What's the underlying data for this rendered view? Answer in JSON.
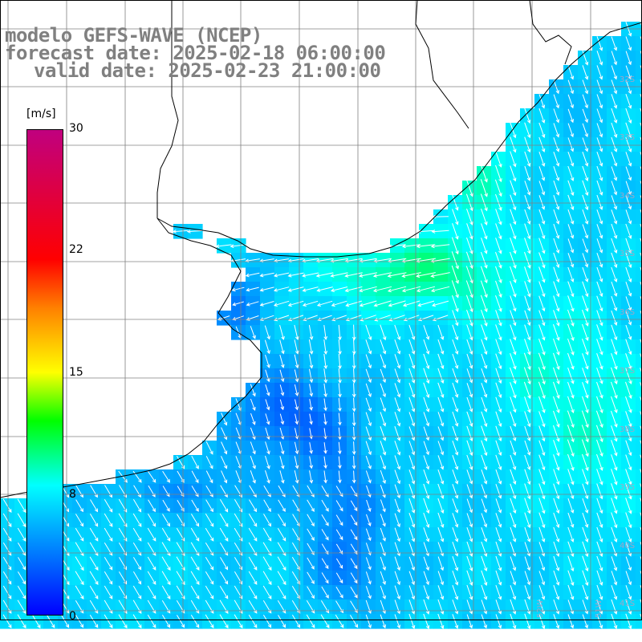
{
  "title": {
    "line1": "modelo GEFS-WAVE (NCEP)",
    "line2": "forecast date: 2025-02-18 06:00:00",
    "line3": "valid date: 2025-02-23 21:00:00"
  },
  "colorbar": {
    "unit": "[m/s]",
    "ticks": [
      "30",
      "22",
      "15",
      "8",
      "0"
    ],
    "min": 0,
    "max": 30,
    "stops": [
      {
        "value": 0,
        "color": "#0000ff"
      },
      {
        "value": 4,
        "color": "#0080ff"
      },
      {
        "value": 8,
        "color": "#00ffff"
      },
      {
        "value": 12,
        "color": "#00ff00"
      },
      {
        "value": 15,
        "color": "#ffff00"
      },
      {
        "value": 19,
        "color": "#ff8000"
      },
      {
        "value": 22,
        "color": "#ff0000"
      },
      {
        "value": 30,
        "color": "#c0007f"
      }
    ]
  },
  "map": {
    "lat_labels": [
      "32S",
      "33S",
      "34S",
      "35S",
      "36S",
      "37S",
      "38S",
      "39S",
      "40S",
      "41S"
    ],
    "lon_labels": [
      "52W",
      "51W"
    ],
    "land_color": "#ffffff",
    "coast_color": "#000000",
    "grid_color": "#808080",
    "arrow_color": "#ffffff"
  }
}
